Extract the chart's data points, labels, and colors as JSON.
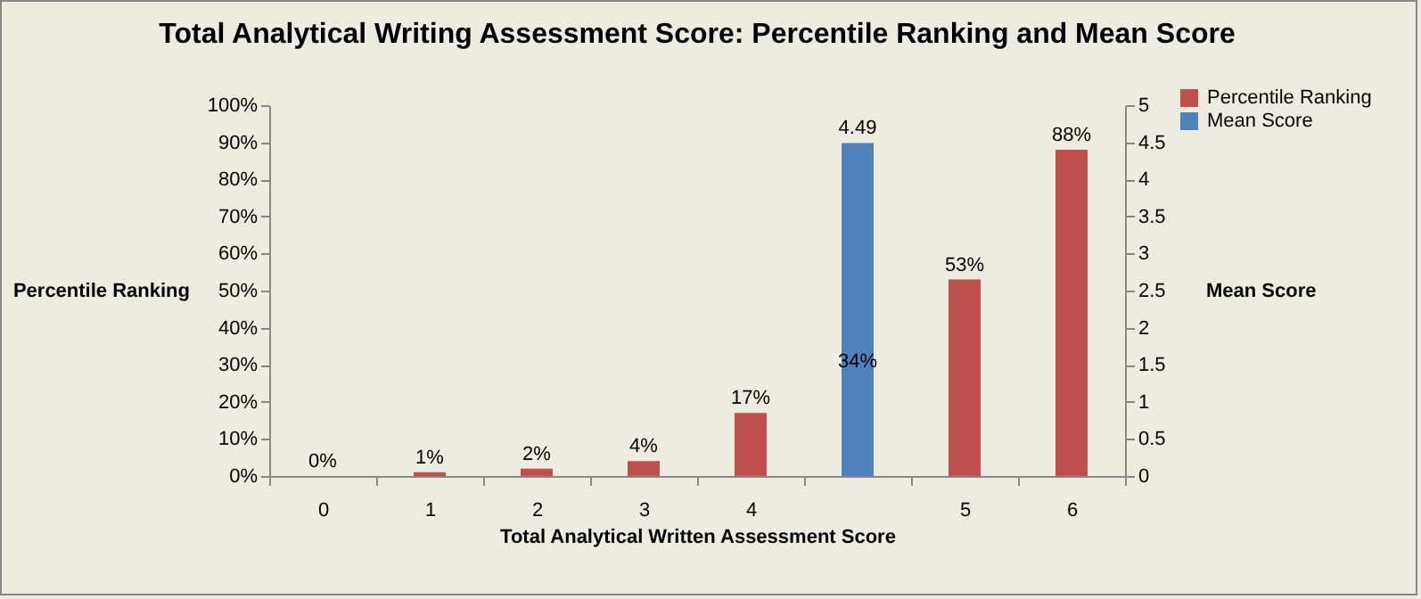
{
  "chart_data": {
    "type": "bar",
    "title": "Total Analytical Writing Assessment Score: Percentile Ranking and Mean Score",
    "xlabel": "Total Analytical  Written Assessment Score",
    "ylabel": "Percentile Ranking",
    "y2label": "Mean Score",
    "categories": [
      "0",
      "1",
      "2",
      "3",
      "4",
      null,
      "5",
      "6"
    ],
    "series": [
      {
        "name": "Percentile Ranking",
        "color": "#c0504d",
        "values": [
          0,
          1,
          2,
          4,
          17,
          null,
          53,
          88
        ],
        "value_labels": [
          "0%",
          "1%",
          "2%",
          "4%",
          "17%",
          null,
          "53%",
          "88%"
        ]
      },
      {
        "name": "Mean Score",
        "color": "#4f81bd",
        "axis": "y2",
        "values": [
          null,
          null,
          null,
          null,
          null,
          4.49,
          null,
          null
        ],
        "value_labels": [
          null,
          null,
          null,
          null,
          null,
          "4.49",
          null,
          null
        ]
      }
    ],
    "ylim": [
      0,
      100
    ],
    "yticks": [
      {
        "value": 0,
        "label": "0%"
      },
      {
        "value": 10,
        "label": "10%"
      },
      {
        "value": 20,
        "label": "20%"
      },
      {
        "value": 30,
        "label": "30%"
      },
      {
        "value": 40,
        "label": "40%"
      },
      {
        "value": 50,
        "label": "50%"
      },
      {
        "value": 60,
        "label": "60%"
      },
      {
        "value": 70,
        "label": "70%"
      },
      {
        "value": 80,
        "label": "80%"
      },
      {
        "value": 90,
        "label": "90%"
      },
      {
        "value": 100,
        "label": "100%"
      }
    ],
    "y2lim": [
      0,
      5
    ],
    "y2ticks": [
      0,
      0.5,
      1,
      1.5,
      2,
      2.5,
      3,
      3.5,
      4,
      4.5,
      5
    ],
    "annotations": [
      "34%"
    ],
    "legend": "right",
    "grid": false
  }
}
